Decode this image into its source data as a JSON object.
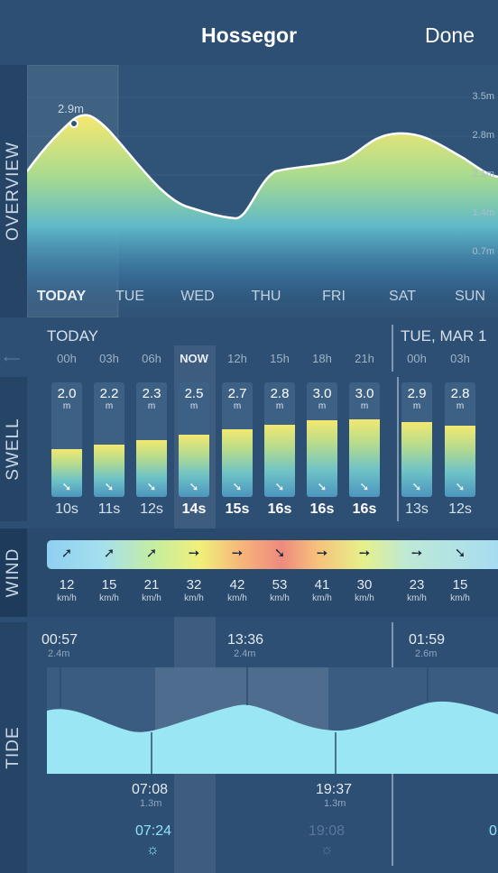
{
  "header": {
    "title": "Hossegor",
    "done_label": "Done"
  },
  "sections": {
    "overview": "OVERVIEW",
    "swell": "SWELL",
    "wind": "WIND",
    "tide": "TIDE"
  },
  "overview": {
    "peak_label": "2.9m",
    "y_ticks": [
      "3.5m",
      "2.8m",
      "2.1m",
      "1.4m",
      "0.7m"
    ],
    "days": [
      "TODAY",
      "TUE",
      "WED",
      "THU",
      "FRI",
      "SAT",
      "SUN"
    ]
  },
  "swell": {
    "today_label": "TODAY",
    "tue_label": "TUE, MAR 1",
    "now_label": "NOW",
    "hours": [
      "00h",
      "03h",
      "06h",
      "NOW",
      "12h",
      "15h",
      "18h",
      "21h",
      "00h",
      "03h"
    ],
    "heights": [
      "2.0",
      "2.2",
      "2.3",
      "2.5",
      "2.7",
      "2.8",
      "3.0",
      "3.0",
      "2.9",
      "2.8"
    ],
    "height_fraction": [
      0.42,
      0.46,
      0.5,
      0.54,
      0.59,
      0.63,
      0.67,
      0.68,
      0.65,
      0.62
    ],
    "unit": "m",
    "periods": [
      "10s",
      "11s",
      "12s",
      "14s",
      "15s",
      "16s",
      "16s",
      "16s",
      "13s",
      "12s"
    ],
    "direction_arrow": "➘"
  },
  "wind": {
    "speeds": [
      "12",
      "15",
      "21",
      "32",
      "42",
      "53",
      "41",
      "30",
      "23",
      "15"
    ],
    "unit": "km/h",
    "arrows": [
      "➚",
      "➚",
      "➚",
      "➙",
      "➙",
      "➘",
      "➙",
      "➙",
      "➙",
      "➘"
    ]
  },
  "tide": {
    "highs": [
      {
        "time": "00:57",
        "height": "2.4m"
      },
      {
        "time": "13:36",
        "height": "2.4m"
      },
      {
        "time": "01:59",
        "height": "2.6m"
      }
    ],
    "lows": [
      {
        "time": "07:08",
        "height": "1.3m"
      },
      {
        "time": "19:37",
        "height": "1.3m"
      }
    ],
    "sunrise": "07:24",
    "sunset": "19:08",
    "next_partial": "0"
  },
  "colors": {
    "background": "#2d4f74",
    "tide_fill": "#9be6f5",
    "accent_sun": "#8fe3f8"
  }
}
